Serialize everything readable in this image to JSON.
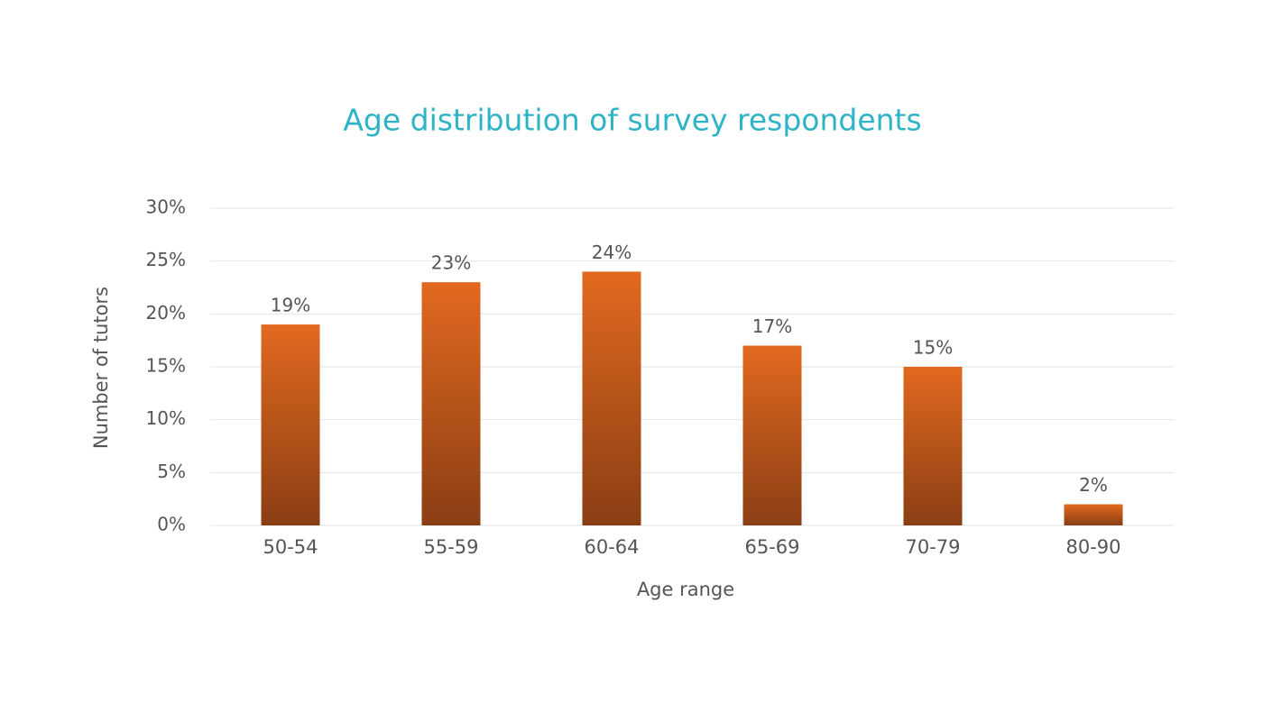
{
  "chart_data": {
    "type": "bar",
    "title": "Age distribution of survey respondents",
    "x_label": "Age range",
    "y_label": "Number of tutors",
    "categories": [
      "50-54",
      "55-59",
      "60-64",
      "65-69",
      "70-79",
      "80-90"
    ],
    "values": [
      19,
      23,
      24,
      17,
      15,
      2
    ],
    "value_labels": [
      "19%",
      "23%",
      "24%",
      "17%",
      "15%",
      "2%"
    ],
    "gradient": [
      "#e2691f",
      "#8a3e14"
    ],
    "ylim": [
      0,
      30
    ],
    "yticks": [
      {
        "value": 0,
        "label": "0%"
      },
      {
        "value": 5,
        "label": "5%"
      },
      {
        "value": 10,
        "label": "10%"
      },
      {
        "value": 15,
        "label": "15%"
      },
      {
        "value": 20,
        "label": "20%"
      },
      {
        "value": 25,
        "label": "25%"
      },
      {
        "value": 30,
        "label": "30%"
      }
    ],
    "grid": true
  }
}
